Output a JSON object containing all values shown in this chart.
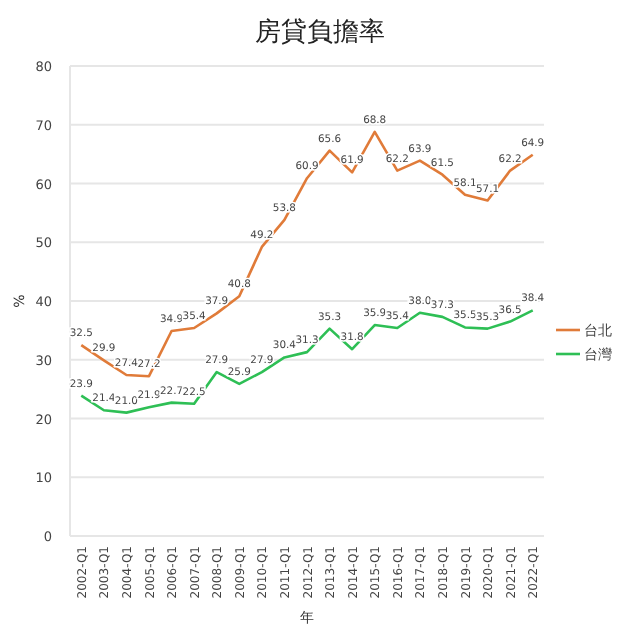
{
  "chart_data": {
    "type": "line",
    "title": "房貸負擔率",
    "xlabel": "年",
    "ylabel": "%",
    "categories": [
      "2002-Q1",
      "2003-Q1",
      "2004-Q1",
      "2005-Q1",
      "2006-Q1",
      "2007-Q1",
      "2008-Q1",
      "2009-Q1",
      "2010-Q1",
      "2011-Q1",
      "2012-Q1",
      "2013-Q1",
      "2014-Q1",
      "2015-Q1",
      "2016-Q1",
      "2017-Q1",
      "2018-Q1",
      "2019-Q1",
      "2020-Q1",
      "2021-Q1",
      "2022-Q1"
    ],
    "series": [
      {
        "name": "台北",
        "color": "#e07b39",
        "values": [
          32.5,
          29.9,
          27.4,
          27.2,
          34.9,
          35.4,
          37.9,
          40.8,
          49.2,
          53.8,
          60.9,
          65.6,
          61.9,
          68.8,
          62.2,
          63.9,
          61.5,
          58.1,
          57.1,
          62.2,
          64.9
        ],
        "value_labels": [
          "32.5",
          "29.9",
          "27.4",
          "27.2",
          "34.9",
          "35.4",
          "37.9",
          "40.8",
          "49.2",
          "53.8",
          "60.9",
          "65.6",
          "61.9",
          "68.8",
          "62.2",
          "63.9",
          "61.5",
          "58.1",
          "57.1",
          "62.2",
          "64.9"
        ]
      },
      {
        "name": "台灣",
        "color": "#2ebf55",
        "values": [
          23.9,
          21.4,
          21,
          21.9,
          22.7,
          22.5,
          27.9,
          25.9,
          27.9,
          30.4,
          31.3,
          35.3,
          31.8,
          35.9,
          35.4,
          38,
          37.3,
          35.5,
          35.3,
          36.5,
          38.4
        ],
        "value_labels": [
          "23.9",
          "21.4",
          "21.0",
          "21.9",
          "22.7",
          "22.5",
          "27.9",
          "25.9",
          "27.9",
          "30.4",
          "31.3",
          "35.3",
          "31.8",
          "35.9",
          "35.4",
          "38.0",
          "37.3",
          "35.5",
          "35.3",
          "36.5",
          "38.4"
        ]
      }
    ],
    "ylim": [
      0,
      80
    ],
    "yticks": [
      0,
      10,
      20,
      30,
      40,
      50,
      60,
      70,
      80
    ],
    "grid": "y",
    "legend": "right"
  }
}
